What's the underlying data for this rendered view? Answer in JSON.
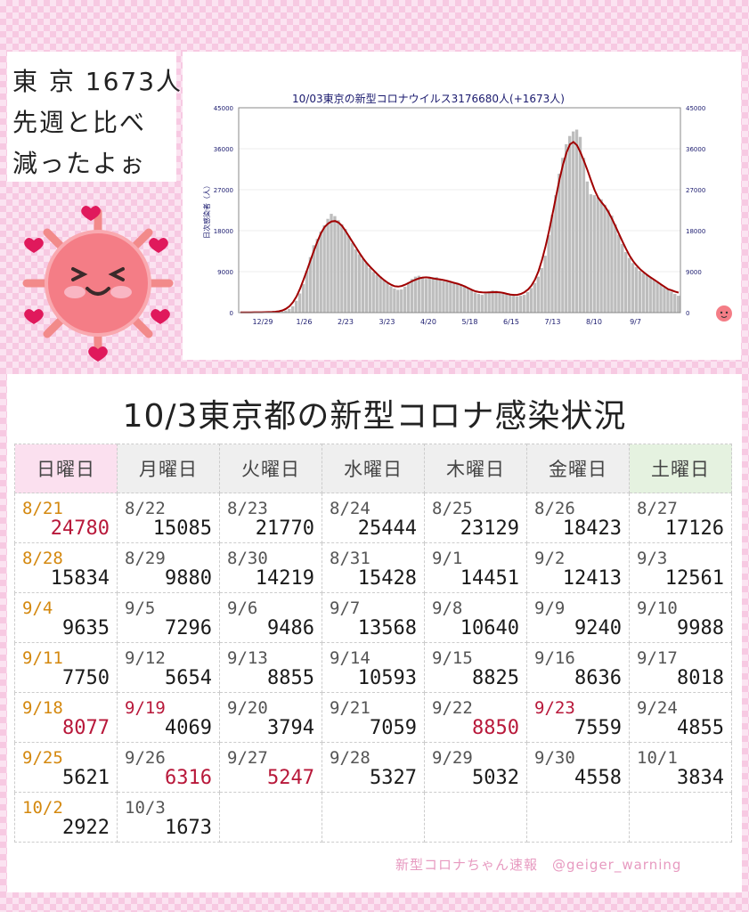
{
  "bubble": {
    "line1": "東 京 1673人",
    "line2": "先週と比べ",
    "line3": "減ったよぉ"
  },
  "chart_data": {
    "type": "bar",
    "title": "10/03東京の新型コロナウイルス3176680人(+1673人)",
    "ylabel": "日次感染者（人）",
    "ylim": [
      0,
      45000
    ],
    "y_ticks": [
      "0",
      "9000",
      "18000",
      "27000",
      "36000",
      "45000"
    ],
    "x_tick_labels": [
      "12/29",
      "1/26",
      "2/23",
      "3/23",
      "4/20",
      "5/18",
      "6/15",
      "7/13",
      "8/10",
      "9/7"
    ],
    "bar_color": "#bdbdbd",
    "line_color": "#a00000",
    "series": [
      {
        "values": [
          50,
          60,
          50,
          80,
          60,
          80,
          70,
          90,
          100,
          120,
          150,
          180,
          260,
          450,
          800,
          1400,
          2600,
          4200,
          6300,
          9200,
          12200,
          14800,
          16200,
          17800,
          19200,
          20600,
          21700,
          21200,
          20300,
          19400,
          18400,
          16900,
          15300,
          13900,
          12800,
          11800,
          10900,
          9800,
          8900,
          8300,
          7900,
          7200,
          6500,
          5800,
          5300,
          5000,
          5100,
          5700,
          6600,
          7400,
          7900,
          8100,
          7700,
          7400,
          7600,
          7800,
          7800,
          7300,
          6900,
          6800,
          6700,
          6700,
          6500,
          6300,
          5900,
          5500,
          4900,
          4400,
          4100,
          3900,
          4200,
          4700,
          4900,
          4800,
          4500,
          4300,
          4100,
          3900,
          3700,
          3600,
          3700,
          3900,
          4500,
          5400,
          6500,
          7900,
          9800,
          12500,
          17000,
          21500,
          25800,
          30500,
          34000,
          37000,
          38800,
          39800,
          40200,
          38600,
          34000,
          28800,
          26000,
          25800,
          25300,
          24900,
          23700,
          22600,
          21300,
          19400,
          17100,
          15100,
          13300,
          12000,
          10900,
          10000,
          9200,
          8700,
          8300,
          7800,
          7300,
          6700,
          6200,
          5600,
          5100,
          4600,
          4100,
          3700
        ]
      }
    ]
  },
  "title": "10/3東京都の新型コロナ感染状況",
  "weekdays": [
    "日曜日",
    "月曜日",
    "火曜日",
    "水曜日",
    "木曜日",
    "金曜日",
    "土曜日"
  ],
  "rows": [
    [
      {
        "d": "8/21",
        "n": "24780"
      },
      {
        "d": "8/22",
        "n": "15085"
      },
      {
        "d": "8/23",
        "n": "21770"
      },
      {
        "d": "8/24",
        "n": "25444"
      },
      {
        "d": "8/25",
        "n": "23129"
      },
      {
        "d": "8/26",
        "n": "18423"
      },
      {
        "d": "8/27",
        "n": "17126"
      }
    ],
    [
      {
        "d": "8/28",
        "n": "15834"
      },
      {
        "d": "8/29",
        "n": "9880"
      },
      {
        "d": "8/30",
        "n": "14219"
      },
      {
        "d": "8/31",
        "n": "15428"
      },
      {
        "d": "9/1",
        "n": "14451"
      },
      {
        "d": "9/2",
        "n": "12413"
      },
      {
        "d": "9/3",
        "n": "12561"
      }
    ],
    [
      {
        "d": "9/4",
        "n": "9635"
      },
      {
        "d": "9/5",
        "n": "7296"
      },
      {
        "d": "9/6",
        "n": "9486"
      },
      {
        "d": "9/7",
        "n": "13568"
      },
      {
        "d": "9/8",
        "n": "10640"
      },
      {
        "d": "9/9",
        "n": "9240"
      },
      {
        "d": "9/10",
        "n": "9988"
      }
    ],
    [
      {
        "d": "9/11",
        "n": "7750"
      },
      {
        "d": "9/12",
        "n": "5654"
      },
      {
        "d": "9/13",
        "n": "8855"
      },
      {
        "d": "9/14",
        "n": "10593"
      },
      {
        "d": "9/15",
        "n": "8825"
      },
      {
        "d": "9/16",
        "n": "8636"
      },
      {
        "d": "9/17",
        "n": "8018"
      }
    ],
    [
      {
        "d": "9/18",
        "n": "8077"
      },
      {
        "d": "9/19",
        "n": "4069"
      },
      {
        "d": "9/20",
        "n": "3794"
      },
      {
        "d": "9/21",
        "n": "7059"
      },
      {
        "d": "9/22",
        "n": "8850"
      },
      {
        "d": "9/23",
        "n": "7559"
      },
      {
        "d": "9/24",
        "n": "4855"
      }
    ],
    [
      {
        "d": "9/25",
        "n": "5621"
      },
      {
        "d": "9/26",
        "n": "6316"
      },
      {
        "d": "9/27",
        "n": "5247"
      },
      {
        "d": "9/28",
        "n": "5327"
      },
      {
        "d": "9/29",
        "n": "5032"
      },
      {
        "d": "9/30",
        "n": "4558"
      },
      {
        "d": "10/1",
        "n": "3834"
      }
    ],
    [
      {
        "d": "10/2",
        "n": "2922"
      },
      {
        "d": "10/3",
        "n": "1673"
      },
      {
        "d": "",
        "n": ""
      },
      {
        "d": "",
        "n": ""
      },
      {
        "d": "",
        "n": ""
      },
      {
        "d": "",
        "n": ""
      },
      {
        "d": "",
        "n": ""
      }
    ]
  ],
  "credit": "新型コロナちゃん速報　@geiger_warning",
  "colors": {
    "red": "#b8183a",
    "holiday": "#d4880e",
    "sunday_header": "#fbe0ef",
    "saturday_header": "#e5f2e0"
  }
}
